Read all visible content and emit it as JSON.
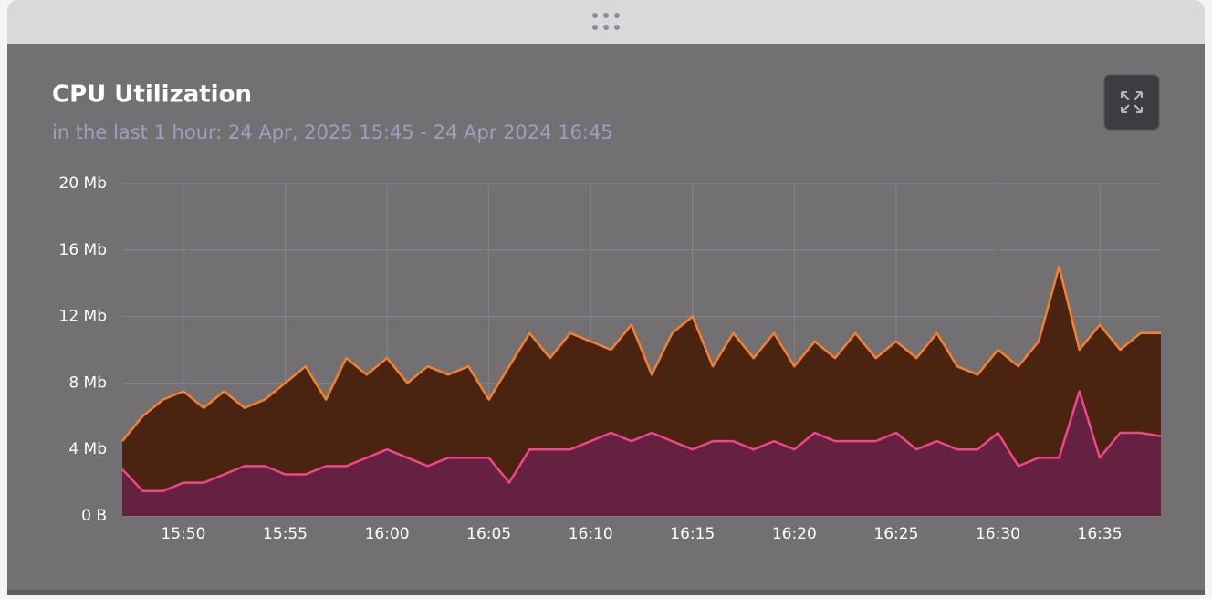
{
  "chart_data": {
    "type": "area",
    "title": "CPU Utilization",
    "subtitle": "in the last 1 hour: 24 Apr, 2025 15:45 - 24 Apr 2024 16:45",
    "x": [
      "15:47",
      "15:48",
      "15:49",
      "15:50",
      "15:51",
      "15:52",
      "15:53",
      "15:54",
      "15:55",
      "15:56",
      "15:57",
      "15:58",
      "15:59",
      "16:00",
      "16:01",
      "16:02",
      "16:03",
      "16:04",
      "16:05",
      "16:06",
      "16:07",
      "16:08",
      "16:09",
      "16:10",
      "16:11",
      "16:12",
      "16:13",
      "16:14",
      "16:15",
      "16:16",
      "16:17",
      "16:18",
      "16:19",
      "16:20",
      "16:21",
      "16:22",
      "16:23",
      "16:24",
      "16:25",
      "16:26",
      "16:27",
      "16:28",
      "16:29",
      "16:30",
      "16:31",
      "16:32",
      "16:33",
      "16:34",
      "16:35",
      "16:36",
      "16:37",
      "16:38"
    ],
    "series": [
      {
        "color": "#f5822a",
        "fill": "#4a2410",
        "values": [
          4.5,
          6,
          7,
          7.5,
          6.5,
          7.5,
          6.5,
          7,
          8,
          9,
          7,
          9.5,
          8.5,
          9.5,
          8,
          9,
          8.5,
          9,
          7,
          9,
          11,
          9.5,
          11,
          10.5,
          10,
          11.5,
          8.5,
          11,
          12,
          9,
          11,
          9.5,
          11,
          9,
          10.5,
          9.5,
          11,
          9.5,
          10.5,
          9.5,
          11,
          9,
          8.5,
          10,
          9,
          10.5,
          15,
          10,
          11.5,
          10,
          11,
          11
        ]
      },
      {
        "color": "#f0468c",
        "fill": "#652140",
        "values": [
          2.8,
          1.5,
          1.5,
          2,
          2,
          2.5,
          3,
          3,
          2.5,
          2.5,
          3,
          3,
          3.5,
          4,
          3.5,
          3,
          3.5,
          3.5,
          3.5,
          2,
          4,
          4,
          4,
          4.5,
          5,
          4.5,
          5,
          4.5,
          4,
          4.5,
          4.5,
          4,
          4.5,
          4,
          5,
          4.5,
          4.5,
          4.5,
          5,
          4,
          4.5,
          4,
          4,
          5,
          3,
          3.5,
          3.5,
          7.5,
          3.5,
          5,
          5,
          4.8
        ]
      }
    ],
    "xlim": [
      "15:47",
      "16:38"
    ],
    "xticks": [
      "15:50",
      "15:55",
      "16:00",
      "16:05",
      "16:10",
      "16:15",
      "16:20",
      "16:25",
      "16:30",
      "16:35"
    ],
    "ylim": [
      0,
      20
    ],
    "yticks": [
      {
        "value": 0,
        "label": "0 B"
      },
      {
        "value": 4,
        "label": "4 Mb"
      },
      {
        "value": 8,
        "label": "8 Mb"
      },
      {
        "value": 12,
        "label": "12 Mb"
      },
      {
        "value": 16,
        "label": "16 Mb"
      },
      {
        "value": 20,
        "label": "20 Mb"
      }
    ],
    "grid": true
  }
}
